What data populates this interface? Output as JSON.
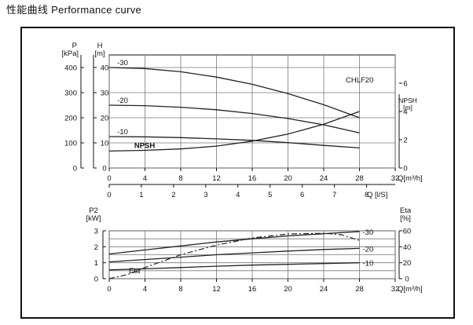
{
  "title": "性能曲线 Performance curve",
  "chart_data": [
    {
      "type": "line",
      "model": "CHLF20",
      "flow_unit_label": "Q[m³/h]",
      "flow_ls_label": "Q [l/S]",
      "left_axis_p": {
        "label_top": "P",
        "label_unit": "[kPa]",
        "ticks": [
          0,
          100,
          200,
          300,
          400
        ]
      },
      "left_axis_h": {
        "label_top": "H",
        "label_unit": "[m]",
        "ticks": [
          0,
          10,
          20,
          30,
          40
        ],
        "ylim": [
          0,
          45
        ]
      },
      "right_axis_npsh": {
        "label_top": "NPSH",
        "label_unit": "[m]",
        "ticks": [
          0,
          2,
          4,
          6
        ],
        "ylim": [
          0,
          8
        ]
      },
      "x_ticks": [
        0,
        4,
        8,
        12,
        16,
        20,
        24,
        28,
        32
      ],
      "x_ls_ticks": [
        0,
        1,
        2,
        3,
        4,
        5,
        6,
        7,
        8
      ],
      "xlim": [
        0,
        32
      ],
      "series": [
        {
          "name": "-30",
          "axis": "H",
          "x": [
            0,
            4,
            8,
            12,
            16,
            20,
            24,
            28
          ],
          "y": [
            40,
            39.6,
            38.3,
            36.2,
            33.3,
            29.6,
            25.2,
            20
          ]
        },
        {
          "name": "-20",
          "axis": "H",
          "x": [
            0,
            4,
            8,
            12,
            16,
            20,
            24,
            28
          ],
          "y": [
            25,
            24.8,
            24.2,
            23.2,
            21.7,
            19.7,
            17.2,
            14
          ]
        },
        {
          "name": "-10",
          "axis": "H",
          "x": [
            0,
            4,
            8,
            12,
            16,
            20,
            24,
            28
          ],
          "y": [
            12.5,
            12.4,
            12.1,
            11.6,
            11,
            10.1,
            9,
            8
          ]
        },
        {
          "name": "NPSH",
          "axis": "NPSH",
          "x": [
            0,
            4,
            8,
            12,
            16,
            20,
            24,
            28
          ],
          "y": [
            1.2,
            1.25,
            1.35,
            1.55,
            1.9,
            2.4,
            3.1,
            4
          ]
        }
      ]
    },
    {
      "type": "line",
      "left_axis_p2": {
        "label_top": "P2",
        "label_unit": "[kW]",
        "ticks": [
          0,
          1,
          2,
          3
        ],
        "ylim": [
          0,
          3
        ]
      },
      "right_axis_eta": {
        "label_top": "Eta",
        "label_unit": "[%]",
        "ticks": [
          0,
          20,
          40,
          60
        ],
        "ylim": [
          0,
          60
        ]
      },
      "flow_unit_label": "Q[m³/h]",
      "x_ticks": [
        0,
        4,
        8,
        12,
        16,
        20,
        24,
        28,
        32
      ],
      "xlim": [
        0,
        32
      ],
      "series": [
        {
          "name": "-30",
          "axis": "P2",
          "x": [
            0,
            4,
            8,
            12,
            16,
            20,
            24,
            28
          ],
          "y": [
            1.55,
            1.8,
            2.05,
            2.3,
            2.5,
            2.68,
            2.82,
            2.95
          ]
        },
        {
          "name": "-20",
          "axis": "P2",
          "x": [
            0,
            4,
            8,
            12,
            16,
            20,
            24,
            28
          ],
          "y": [
            1.05,
            1.2,
            1.35,
            1.5,
            1.62,
            1.73,
            1.83,
            1.9
          ]
        },
        {
          "name": "-10",
          "axis": "P2",
          "x": [
            0,
            4,
            8,
            12,
            16,
            20,
            24,
            28
          ],
          "y": [
            0.55,
            0.62,
            0.7,
            0.78,
            0.85,
            0.9,
            0.95,
            1.0
          ]
        },
        {
          "name": "Eta",
          "axis": "Eta",
          "x": [
            0,
            2,
            4,
            8,
            12,
            16,
            20,
            24,
            26,
            28
          ],
          "y": [
            0,
            5,
            14,
            30,
            42,
            51,
            56,
            57,
            55,
            48
          ]
        }
      ]
    }
  ]
}
